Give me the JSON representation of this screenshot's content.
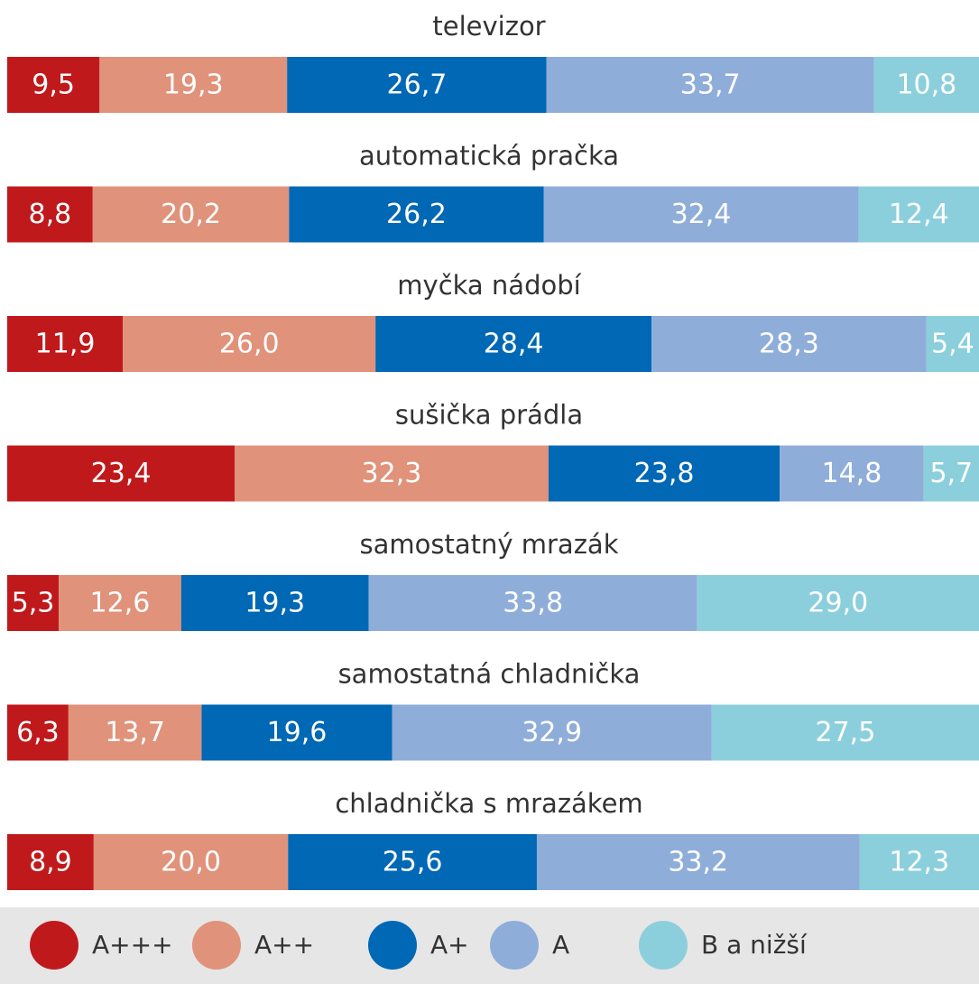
{
  "chart_data": {
    "type": "stacked-bar-horizontal",
    "categories": [
      "televizor",
      "automatická pračka",
      "myčka nádobí",
      "sušička prádla",
      "samostatný mrazák",
      "samostatná chladnička",
      "chladnička s mrazákem"
    ],
    "xlim": [
      0,
      100
    ],
    "series": [
      {
        "name": "A+++",
        "color": "#c0191c",
        "values": [
          9.5,
          8.8,
          11.9,
          23.4,
          5.3,
          6.3,
          8.9
        ],
        "value_labels": [
          "9,5",
          "8,8",
          "11,9",
          "23,4",
          "5,3",
          "6,3",
          "8,9"
        ]
      },
      {
        "name": "A++",
        "color": "#e0927a",
        "values": [
          19.3,
          20.2,
          26.0,
          32.3,
          12.6,
          13.7,
          20.0
        ],
        "value_labels": [
          "19,3",
          "20,2",
          "26,0",
          "32,3",
          "12,6",
          "13,7",
          "20,0"
        ]
      },
      {
        "name": "A+",
        "color": "#0068b4",
        "values": [
          26.7,
          26.2,
          28.4,
          23.8,
          19.3,
          19.6,
          25.6
        ],
        "value_labels": [
          "26,7",
          "26,2",
          "28,4",
          "23,8",
          "19,3",
          "19,6",
          "25,6"
        ]
      },
      {
        "name": "A",
        "color": "#8fadd9",
        "values": [
          33.7,
          32.4,
          28.3,
          14.8,
          33.8,
          32.9,
          33.2
        ],
        "value_labels": [
          "33,7",
          "32,4",
          "28,3",
          "14,8",
          "33,8",
          "32,9",
          "33,2"
        ]
      },
      {
        "name": "B a nižší",
        "color": "#8ccfdc",
        "values": [
          10.8,
          12.4,
          5.4,
          5.7,
          29.0,
          27.5,
          12.3
        ],
        "value_labels": [
          "10,8",
          "12,4",
          "5,4",
          "5,7",
          "29,0",
          "27,5",
          "12,3"
        ]
      }
    ]
  }
}
